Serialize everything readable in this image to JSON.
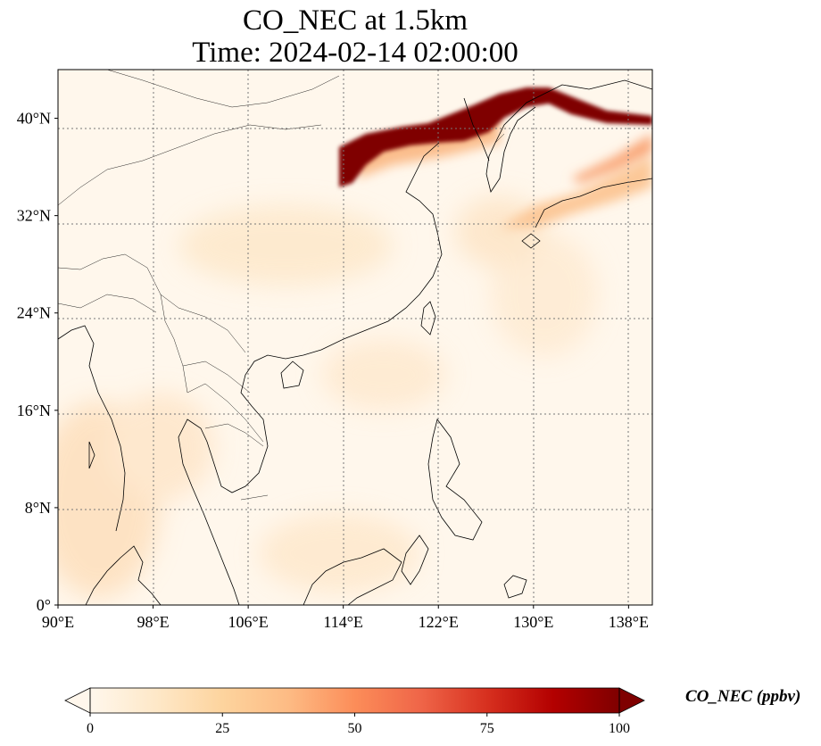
{
  "title": {
    "line1": "CO_NEC at 1.5km",
    "line2": "Time: 2024-02-14 02:00:00"
  },
  "map": {
    "projection": "PlateCarree",
    "lon_range": [
      90,
      140
    ],
    "lat_range": [
      0,
      44
    ],
    "x_ticks": [
      {
        "value": 90,
        "label": "90°E"
      },
      {
        "value": 98,
        "label": "98°E"
      },
      {
        "value": 106,
        "label": "106°E"
      },
      {
        "value": 114,
        "label": "114°E"
      },
      {
        "value": 122,
        "label": "122°E"
      },
      {
        "value": 130,
        "label": "130°E"
      },
      {
        "value": 138,
        "label": "138°E"
      }
    ],
    "y_ticks": [
      {
        "value": 0,
        "label": "0°"
      },
      {
        "value": 8,
        "label": "8°N"
      },
      {
        "value": 16,
        "label": "16°N"
      },
      {
        "value": 24,
        "label": "24°N"
      },
      {
        "value": 32,
        "label": "32°N"
      },
      {
        "value": 40,
        "label": "40°N"
      }
    ],
    "gridlines": "dotted",
    "features": [
      "coastlines",
      "country-borders"
    ]
  },
  "colorbar": {
    "label": "CO_NEC (ppbv)",
    "colormap": "OrRd",
    "range": [
      0,
      100
    ],
    "extend": "both",
    "ticks": [
      {
        "value": 0,
        "label": "0"
      },
      {
        "value": 25,
        "label": "25"
      },
      {
        "value": 50,
        "label": "50"
      },
      {
        "value": 75,
        "label": "75"
      },
      {
        "value": 100,
        "label": "100"
      }
    ],
    "colors": [
      "#fff7ec",
      "#fee8c8",
      "#fdd49e",
      "#fdbb84",
      "#fc8d59",
      "#ef6548",
      "#d7301f",
      "#b30000",
      "#7f0000"
    ]
  }
}
